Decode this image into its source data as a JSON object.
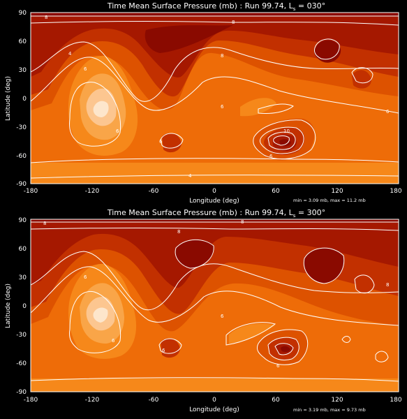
{
  "chart_data": [
    {
      "type": "heatmap",
      "title": "Time Mean Surface Pressure (mb) : Run 99.74, Ls = 030°",
      "title_parts": {
        "main": "Time Mean Surface Pressure (mb) : Run 99.74, L",
        "sub": "s",
        "tail": " = 030°"
      },
      "xlabel": "Longitude (deg)",
      "ylabel": "Latitude (deg)",
      "xlim": [
        -180,
        180
      ],
      "ylim": [
        -90,
        90
      ],
      "xticks": [
        "-180",
        "-120",
        "-60",
        "0",
        "60",
        "120",
        "180"
      ],
      "yticks": [
        "90",
        "60",
        "30",
        "0",
        "-30",
        "-60",
        "-90"
      ],
      "min_max": "min = 3.09 mb, max = 11.2 mb",
      "contour_labels": [
        "4",
        "4",
        "6",
        "6",
        "6",
        "6",
        "6",
        "6",
        "8",
        "8",
        "8",
        "10"
      ],
      "highs": [
        {
          "lon": 66,
          "lat": -38,
          "value": 11.2
        }
      ],
      "lows": [
        {
          "lon": -110,
          "lat": -10,
          "value": 3.09
        }
      ]
    },
    {
      "type": "heatmap",
      "title": "Time Mean Surface Pressure (mb) : Run 99.74, Ls = 300°",
      "title_parts": {
        "main": "Time Mean Surface Pressure (mb) : Run 99.74, L",
        "sub": "s",
        "tail": " = 300°"
      },
      "xlabel": "Longitude (deg)",
      "ylabel": "Latitude (deg)",
      "xlim": [
        -180,
        180
      ],
      "ylim": [
        -90,
        90
      ],
      "xticks": [
        "-180",
        "-120",
        "-60",
        "0",
        "60",
        "120",
        "180"
      ],
      "yticks": [
        "90",
        "60",
        "30",
        "0",
        "-30",
        "-60",
        "-90"
      ],
      "min_max": "min = 3.19 mb, max = 9.73 mb",
      "contour_labels": [
        "6",
        "6",
        "6",
        "6",
        "6",
        "8",
        "8",
        "8",
        "8"
      ],
      "highs": [
        {
          "lon": 66,
          "lat": -38,
          "value": 9.73
        }
      ],
      "lows": [
        {
          "lon": -110,
          "lat": -10,
          "value": 3.19
        }
      ]
    }
  ],
  "colors": {
    "background": "#000000",
    "level_darkest": "#8a0a00",
    "level_dark": "#a51800",
    "level_mid_dark": "#c23000",
    "level_mid": "#dd5200",
    "level_base": "#ee6c08",
    "level_light": "#f6881a",
    "level_lighter": "#f9a548",
    "level_lightest": "#fcc690",
    "level_peak": "#fde6cc",
    "contour": "#ffffff"
  }
}
